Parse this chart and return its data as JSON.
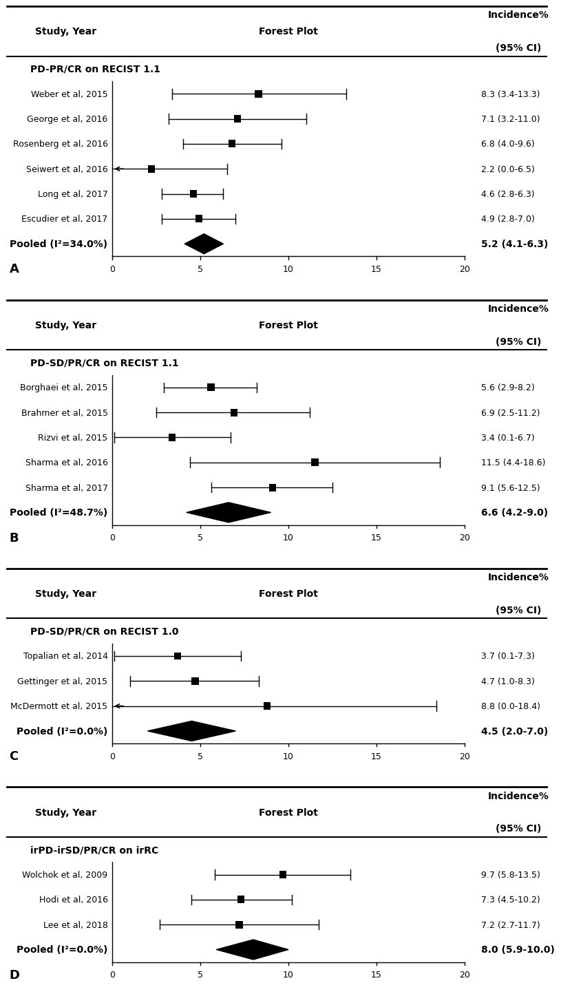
{
  "panels": [
    {
      "label": "A",
      "subtitle": "PD-PR/CR on RECIST 1.1",
      "studies": [
        {
          "name": "Weber et al, 2015",
          "est": 8.3,
          "lo": 3.4,
          "hi": 13.3,
          "ci_text": "8.3 (3.4-13.3)",
          "arrow_left": false
        },
        {
          "name": "George et al, 2016",
          "est": 7.1,
          "lo": 3.2,
          "hi": 11.0,
          "ci_text": "7.1 (3.2-11.0)",
          "arrow_left": false
        },
        {
          "name": "Rosenberg et al, 2016",
          "est": 6.8,
          "lo": 4.0,
          "hi": 9.6,
          "ci_text": "6.8 (4.0-9.6)",
          "arrow_left": false
        },
        {
          "name": "Seiwert et al, 2016",
          "est": 2.2,
          "lo": 0.0,
          "hi": 6.5,
          "ci_text": "2.2 (0.0-6.5)",
          "arrow_left": true
        },
        {
          "name": "Long et al, 2017",
          "est": 4.6,
          "lo": 2.8,
          "hi": 6.3,
          "ci_text": "4.6 (2.8-6.3)",
          "arrow_left": false
        },
        {
          "name": "Escudier et al, 2017",
          "est": 4.9,
          "lo": 2.8,
          "hi": 7.0,
          "ci_text": "4.9 (2.8-7.0)",
          "arrow_left": false
        }
      ],
      "pooled": {
        "est": 5.2,
        "lo": 4.1,
        "hi": 6.3,
        "ci_text": "5.2 (4.1-6.3)",
        "label2": "Pooled (I²=34.0%)"
      },
      "xlim": [
        0,
        20
      ],
      "xticks": [
        0,
        5,
        10,
        15,
        20
      ]
    },
    {
      "label": "B",
      "subtitle": "PD-SD/PR/CR on RECIST 1.1",
      "studies": [
        {
          "name": "Borghaei et al, 2015",
          "est": 5.6,
          "lo": 2.9,
          "hi": 8.2,
          "ci_text": "5.6 (2.9-8.2)",
          "arrow_left": false
        },
        {
          "name": "Brahmer et al, 2015",
          "est": 6.9,
          "lo": 2.5,
          "hi": 11.2,
          "ci_text": "6.9 (2.5-11.2)",
          "arrow_left": false
        },
        {
          "name": "Rizvi et al, 2015",
          "est": 3.4,
          "lo": 0.1,
          "hi": 6.7,
          "ci_text": "3.4 (0.1-6.7)",
          "arrow_left": false
        },
        {
          "name": "Sharma et al, 2016",
          "est": 11.5,
          "lo": 4.4,
          "hi": 18.6,
          "ci_text": "11.5 (4.4-18.6)",
          "arrow_left": false
        },
        {
          "name": "Sharma et al, 2017",
          "est": 9.1,
          "lo": 5.6,
          "hi": 12.5,
          "ci_text": "9.1 (5.6-12.5)",
          "arrow_left": false
        }
      ],
      "pooled": {
        "est": 6.6,
        "lo": 4.2,
        "hi": 9.0,
        "ci_text": "6.6 (4.2-9.0)",
        "label2": "Pooled (I²=48.7%)"
      },
      "xlim": [
        0,
        20
      ],
      "xticks": [
        0,
        5,
        10,
        15,
        20
      ]
    },
    {
      "label": "C",
      "subtitle": "PD-SD/PR/CR on RECIST 1.0",
      "studies": [
        {
          "name": "Topalian et al, 2014",
          "est": 3.7,
          "lo": 0.1,
          "hi": 7.3,
          "ci_text": "3.7 (0.1-7.3)",
          "arrow_left": false
        },
        {
          "name": "Gettinger et al, 2015",
          "est": 4.7,
          "lo": 1.0,
          "hi": 8.3,
          "ci_text": "4.7 (1.0-8.3)",
          "arrow_left": false
        },
        {
          "name": "McDermott et al, 2015",
          "est": 8.8,
          "lo": 0.0,
          "hi": 18.4,
          "ci_text": "8.8 (0.0-18.4)",
          "arrow_left": true
        }
      ],
      "pooled": {
        "est": 4.5,
        "lo": 2.0,
        "hi": 7.0,
        "ci_text": "4.5 (2.0-7.0)",
        "label2": "Pooled (I²=0.0%)"
      },
      "xlim": [
        0,
        20
      ],
      "xticks": [
        0,
        5,
        10,
        15,
        20
      ]
    },
    {
      "label": "D",
      "subtitle": "irPD-irSD/PR/CR on irRC",
      "studies": [
        {
          "name": "Wolchok et al, 2009",
          "est": 9.7,
          "lo": 5.8,
          "hi": 13.5,
          "ci_text": "9.7 (5.8-13.5)",
          "arrow_left": false
        },
        {
          "name": "Hodi et al, 2016",
          "est": 7.3,
          "lo": 4.5,
          "hi": 10.2,
          "ci_text": "7.3 (4.5-10.2)",
          "arrow_left": false
        },
        {
          "name": "Lee et al, 2018",
          "est": 7.2,
          "lo": 2.7,
          "hi": 11.7,
          "ci_text": "7.2 (2.7-11.7)",
          "arrow_left": false
        }
      ],
      "pooled": {
        "est": 8.0,
        "lo": 5.9,
        "hi": 10.0,
        "ci_text": "8.0 (5.9-10.0)",
        "label2": "Pooled (I²=0.0%)"
      },
      "xlim": [
        0,
        20
      ],
      "xticks": [
        0,
        5,
        10,
        15,
        20
      ]
    }
  ],
  "bg_color": "#ffffff"
}
